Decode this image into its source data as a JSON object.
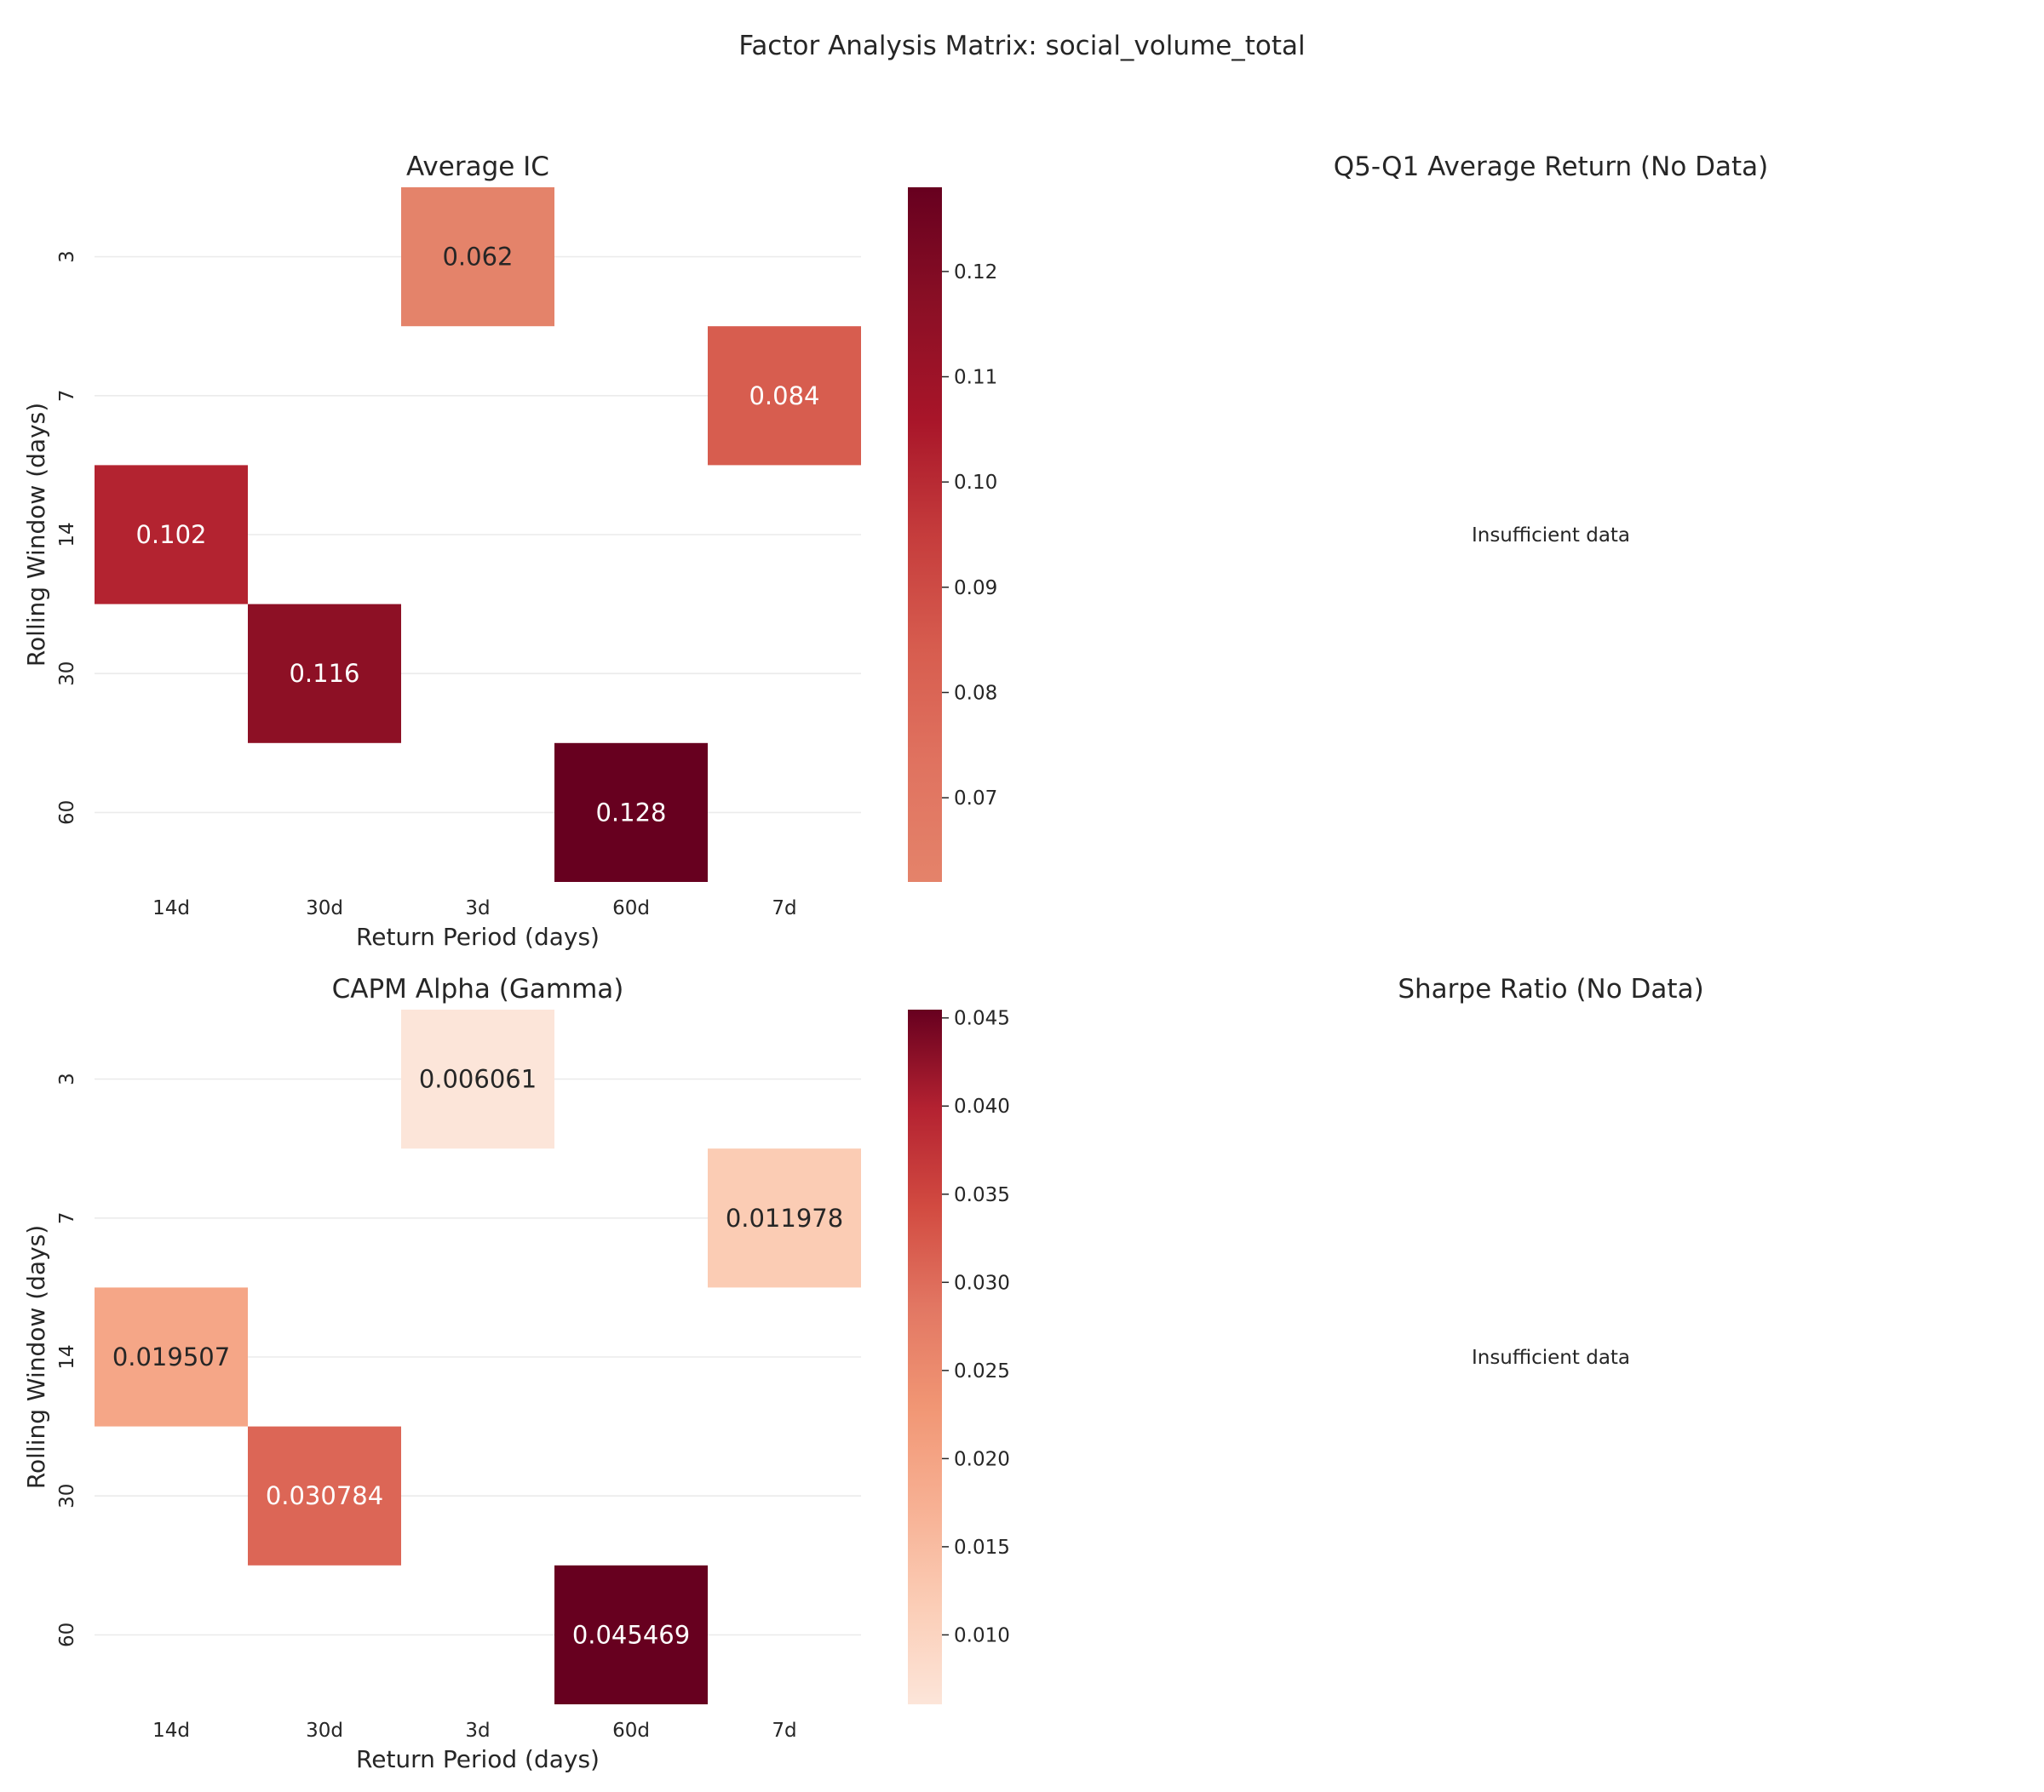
{
  "figure": {
    "title": "Factor Analysis Matrix: social_volume_total",
    "background": "#ffffff"
  },
  "chart_data": [
    {
      "type": "heatmap",
      "title": "Average IC",
      "xlabel": "Return Period (days)",
      "ylabel": "Rolling Window (days)",
      "x_categories": [
        "14d",
        "30d",
        "3d",
        "60d",
        "7d"
      ],
      "y_categories": [
        "3",
        "7",
        "14",
        "30",
        "60"
      ],
      "cells": [
        {
          "row": 0,
          "col": 2,
          "value": 0.062,
          "label": "0.062"
        },
        {
          "row": 1,
          "col": 4,
          "value": 0.084,
          "label": "0.084"
        },
        {
          "row": 2,
          "col": 0,
          "value": 0.102,
          "label": "0.102"
        },
        {
          "row": 3,
          "col": 1,
          "value": 0.116,
          "label": "0.116"
        },
        {
          "row": 4,
          "col": 3,
          "value": 0.128,
          "label": "0.128"
        }
      ],
      "colorbar": {
        "vmin": 0.062,
        "vmax": 0.128,
        "ticks": [
          0.07,
          0.08,
          0.09,
          0.1,
          0.11,
          0.12
        ],
        "tick_labels": [
          "0.07",
          "0.08",
          "0.09",
          "0.10",
          "0.11",
          "0.12"
        ]
      },
      "colormap": "Reds",
      "grid": true
    },
    {
      "type": "heatmap",
      "title": "Q5-Q1 Average Return (No Data)",
      "message": "Insufficient data"
    },
    {
      "type": "heatmap",
      "title": "CAPM Alpha (Gamma)",
      "xlabel": "Return Period (days)",
      "ylabel": "Rolling Window (days)",
      "x_categories": [
        "14d",
        "30d",
        "3d",
        "60d",
        "7d"
      ],
      "y_categories": [
        "3",
        "7",
        "14",
        "30",
        "60"
      ],
      "cells": [
        {
          "row": 0,
          "col": 2,
          "value": 0.006061,
          "label": "0.006061"
        },
        {
          "row": 1,
          "col": 4,
          "value": 0.011978,
          "label": "0.011978"
        },
        {
          "row": 2,
          "col": 0,
          "value": 0.019507,
          "label": "0.019507"
        },
        {
          "row": 3,
          "col": 1,
          "value": 0.030784,
          "label": "0.030784"
        },
        {
          "row": 4,
          "col": 3,
          "value": 0.045469,
          "label": "0.045469"
        }
      ],
      "colorbar": {
        "vmin": 0.006061,
        "vmax": 0.045469,
        "ticks": [
          0.01,
          0.015,
          0.02,
          0.025,
          0.03,
          0.035,
          0.04,
          0.045
        ],
        "tick_labels": [
          "0.010",
          "0.015",
          "0.020",
          "0.025",
          "0.030",
          "0.035",
          "0.040",
          "0.045"
        ]
      },
      "colormap": "Reds",
      "grid": true
    },
    {
      "type": "heatmap",
      "title": "Sharpe Ratio (No Data)",
      "message": "Insufficient data"
    }
  ],
  "palette": {
    "grid": "#ebebeb",
    "text_dark": "#262626",
    "text_light": "#ffffff",
    "ic_colormap": [
      "#e4836a",
      "#e07360",
      "#d75d4f",
      "#c53c3c",
      "#a81529",
      "#8a0f25",
      "#67001f"
    ],
    "alpha_colormap": [
      "#fce5d9",
      "#fbcdb6",
      "#f7b093",
      "#f19674",
      "#e27763",
      "#d24b41",
      "#b42231",
      "#67001f"
    ]
  }
}
